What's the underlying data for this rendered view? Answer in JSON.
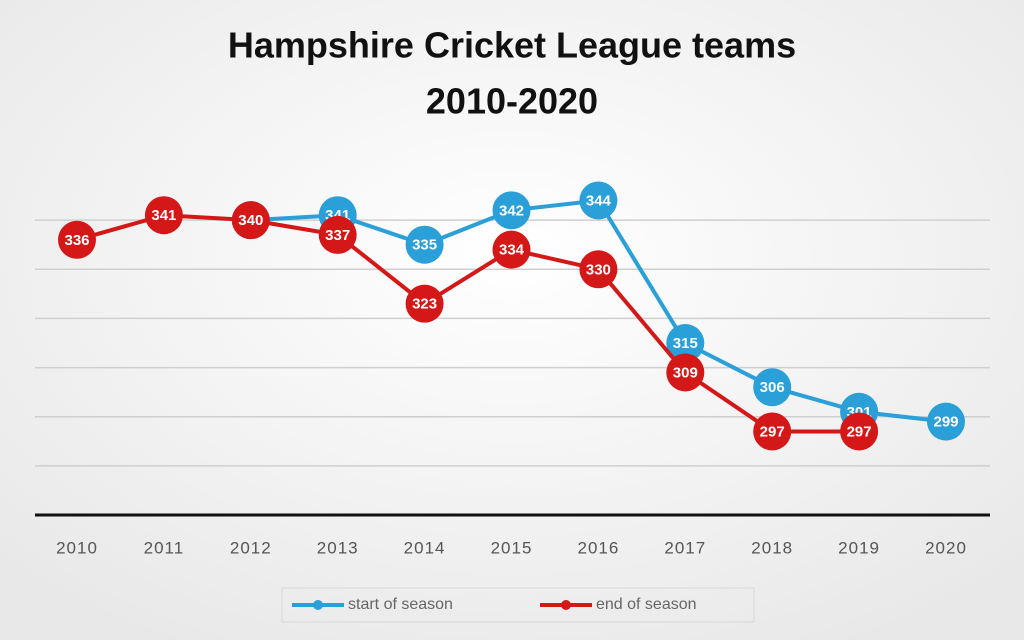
{
  "chart_data": {
    "type": "line",
    "title": "Hampshire Cricket League teams",
    "subtitle": "2010-2020",
    "categories": [
      "2010",
      "2011",
      "2012",
      "2013",
      "2014",
      "2015",
      "2016",
      "2017",
      "2018",
      "2019",
      "2020"
    ],
    "series": [
      {
        "name": "start of season",
        "color": "#2a9fd8",
        "values": [
          null,
          null,
          340,
          341,
          335,
          342,
          344,
          315,
          306,
          301,
          299
        ]
      },
      {
        "name": "end of season",
        "color": "#d41818",
        "values": [
          336,
          341,
          340,
          337,
          323,
          334,
          330,
          309,
          297,
          297,
          null
        ]
      }
    ],
    "ylim": [
      280,
      350
    ],
    "yticks": [
      280,
      290,
      300,
      310,
      320,
      330,
      340
    ],
    "grid": true,
    "legend": "bottom"
  }
}
